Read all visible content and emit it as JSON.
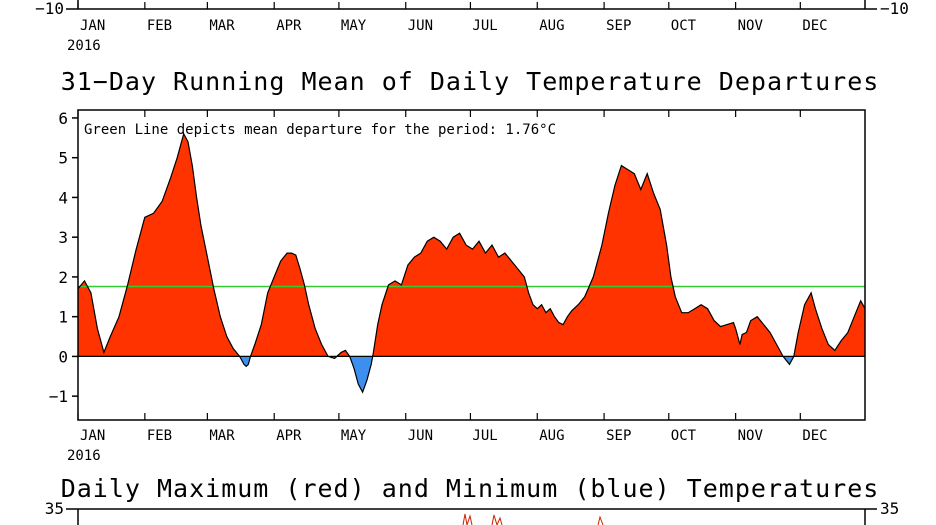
{
  "chart_data": {
    "type": "area",
    "title": "31−Day Running Mean of Daily Temperature Departures",
    "annotation": "Green Line depicts mean departure for the period: 1.76°C",
    "month_labels": [
      "JAN",
      "FEB",
      "MAR",
      "APR",
      "MAY",
      "JUN",
      "JUL",
      "AUG",
      "SEP",
      "OCT",
      "NOV",
      "DEC"
    ],
    "year_label": "2016",
    "yticks": [
      "6",
      "5",
      "4",
      "3",
      "2",
      "1",
      "0",
      "−1"
    ],
    "ylim": [
      -1.6,
      6.2
    ],
    "xlim": [
      1,
      366
    ],
    "mean_value": 1.76,
    "colors": {
      "positive": "#ff3300",
      "negative": "#3d8fef",
      "mean": "#33cc33",
      "outline": "#000000"
    },
    "series": [
      {
        "x": [
          1,
          4,
          7,
          10,
          13,
          16,
          20,
          24,
          28,
          32,
          36,
          40,
          44,
          47,
          50,
          52,
          54,
          56,
          58,
          61,
          64,
          67,
          70,
          73,
          76,
          78,
          79,
          80,
          81,
          83,
          86,
          89,
          92,
          95,
          98,
          100,
          102,
          104,
          106,
          108,
          111,
          114,
          117,
          120,
          123,
          125,
          127,
          129,
          131,
          133,
          135,
          137,
          138,
          140,
          142,
          145,
          148,
          151,
          154,
          157,
          160,
          163,
          166,
          169,
          172,
          175,
          178,
          181,
          184,
          187,
          190,
          193,
          196,
          199,
          202,
          205,
          208,
          210,
          212,
          214,
          216,
          218,
          220,
          222,
          224,
          226,
          228,
          230,
          233,
          236,
          240,
          244,
          247,
          250,
          253,
          256,
          259,
          262,
          265,
          268,
          271,
          274,
          276,
          278,
          281,
          284,
          287,
          290,
          293,
          296,
          299,
          302,
          305,
          306,
          307,
          308,
          309,
          311,
          313,
          316,
          319,
          322,
          325,
          328,
          331,
          333,
          335,
          338,
          341,
          343,
          346,
          349,
          352,
          355,
          358,
          361,
          364,
          366
        ],
        "y": [
          1.7,
          1.9,
          1.6,
          0.7,
          0.1,
          0.5,
          1.0,
          1.8,
          2.7,
          3.5,
          3.6,
          3.9,
          4.5,
          5.0,
          5.6,
          5.4,
          4.8,
          4.0,
          3.3,
          2.5,
          1.7,
          1.0,
          0.5,
          0.2,
          0.0,
          -0.2,
          -0.25,
          -0.2,
          0.0,
          0.3,
          0.8,
          1.6,
          2.0,
          2.4,
          2.6,
          2.6,
          2.55,
          2.2,
          1.8,
          1.3,
          0.7,
          0.3,
          0.0,
          -0.05,
          0.1,
          0.15,
          0.0,
          -0.3,
          -0.7,
          -0.9,
          -0.6,
          -0.2,
          0.1,
          0.8,
          1.3,
          1.8,
          1.9,
          1.8,
          2.3,
          2.5,
          2.6,
          2.9,
          3.0,
          2.9,
          2.7,
          3.0,
          3.1,
          2.8,
          2.7,
          2.9,
          2.6,
          2.8,
          2.5,
          2.6,
          2.4,
          2.2,
          2.0,
          1.6,
          1.3,
          1.2,
          1.3,
          1.1,
          1.2,
          1.0,
          0.85,
          0.8,
          1.0,
          1.15,
          1.3,
          1.5,
          2.0,
          2.8,
          3.6,
          4.3,
          4.8,
          4.7,
          4.6,
          4.2,
          4.6,
          4.1,
          3.7,
          2.8,
          2.0,
          1.5,
          1.1,
          1.1,
          1.2,
          1.3,
          1.2,
          0.9,
          0.75,
          0.8,
          0.85,
          0.7,
          0.5,
          0.3,
          0.55,
          0.6,
          0.9,
          1.0,
          0.8,
          0.6,
          0.3,
          0.0,
          -0.2,
          0.0,
          0.6,
          1.3,
          1.6,
          1.2,
          0.7,
          0.3,
          0.15,
          0.4,
          0.6,
          1.0,
          1.4,
          1.2
        ]
      }
    ]
  },
  "top_panel": {
    "left_tick": "−10",
    "right_tick": "−10",
    "month_labels": [
      "JAN",
      "FEB",
      "MAR",
      "APR",
      "MAY",
      "JUN",
      "JUL",
      "AUG",
      "SEP",
      "OCT",
      "NOV",
      "DEC"
    ],
    "year_label": "2016"
  },
  "bottom_panel": {
    "title": "Daily Maximum (red) and Minimum (blue) Temperatures",
    "left_tick": "35",
    "right_tick": "35"
  }
}
